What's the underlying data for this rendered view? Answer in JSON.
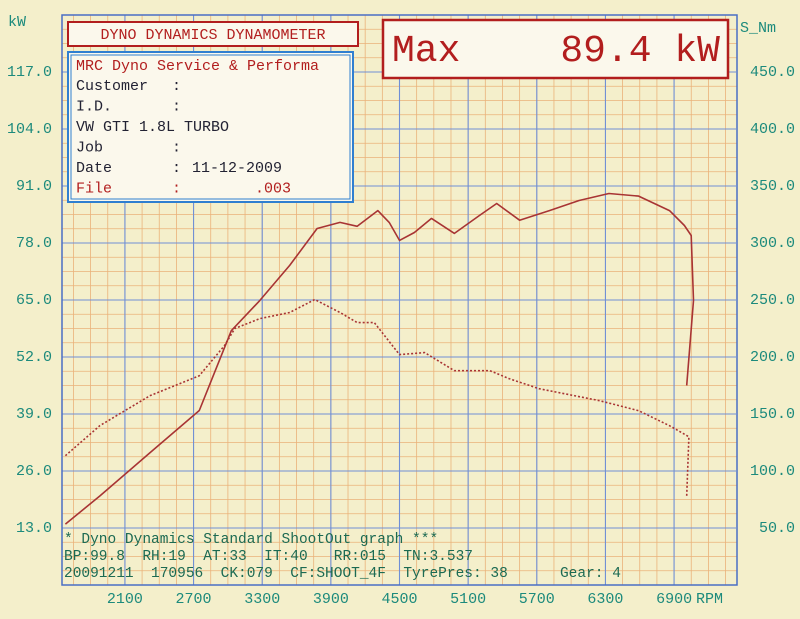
{
  "chart_data": {
    "type": "line",
    "y_label": "kW",
    "y2_label": "S_Nm",
    "x_label": "RPM",
    "header_title": "DYNO DYNAMICS DYNAMOMETER",
    "max_label": "Max",
    "max_value": "89.4 kW",
    "info": {
      "shop": "MRC Dyno Service & Performa",
      "rows": [
        [
          "Customer",
          ":",
          ""
        ],
        [
          "I.D.",
          ":",
          ""
        ],
        [
          "VW GTI 1.8L TURBO",
          "",
          ""
        ],
        [
          "Job",
          ":",
          ""
        ],
        [
          "Date",
          ":",
          "11-12-2009"
        ],
        [
          "File",
          ":",
          ".003"
        ]
      ]
    },
    "footer": [
      "* Dyno Dynamics Standard ShootOut graph ***",
      "BP:99.8  RH:19  AT:33  IT:40   RR:015  TN:3.537",
      "20091211  170956  CK:079  CF:SHOOT_4F  TyrePres: 38      Gear: 4"
    ],
    "xlim": [
      1550,
      7450
    ],
    "xticks": [
      2100,
      2700,
      3300,
      3900,
      4500,
      5100,
      5700,
      6300,
      6900
    ],
    "ylim": [
      0,
      130
    ],
    "yticks": [
      {
        "value": 13,
        "label": "13.0"
      },
      {
        "value": 26,
        "label": "26.0"
      },
      {
        "value": 39,
        "label": "39.0"
      },
      {
        "value": 52,
        "label": "52.0"
      },
      {
        "value": 65,
        "label": "65.0"
      },
      {
        "value": 78,
        "label": "78.0"
      },
      {
        "value": 91,
        "label": "91.0"
      },
      {
        "value": 104,
        "label": "104.0"
      },
      {
        "value": 117,
        "label": "117.0"
      }
    ],
    "y2lim": [
      0,
      500
    ],
    "y2ticks": [
      {
        "value": 50,
        "label": "50.0"
      },
      {
        "value": 100,
        "label": "100.0"
      },
      {
        "value": 150,
        "label": "150.0"
      },
      {
        "value": 200,
        "label": "200.0"
      },
      {
        "value": 250,
        "label": "250.0"
      },
      {
        "value": 300,
        "label": "300.0"
      },
      {
        "value": 350,
        "label": "350.0"
      },
      {
        "value": 400,
        "label": "400.0"
      },
      {
        "value": 450,
        "label": "450.0"
      }
    ],
    "grid": true,
    "series": [
      {
        "color": "#a83434",
        "dash": false,
        "axis": "y",
        "x": [
          1580,
          1880,
          2320,
          2750,
          3030,
          3280,
          3540,
          3780,
          3980,
          4130,
          4310,
          4410,
          4500,
          4630,
          4780,
          4980,
          5200,
          5350,
          5550,
          5810,
          6070,
          6330,
          6590,
          6860,
          6990,
          7050,
          7070,
          7010
        ],
        "values": [
          13.9,
          20.3,
          30.2,
          39.8,
          58.0,
          64.9,
          72.9,
          81.3,
          82.7,
          81.8,
          85.4,
          82.7,
          78.6,
          80.4,
          83.6,
          80.2,
          84.3,
          87.0,
          83.2,
          85.4,
          87.7,
          89.3,
          88.7,
          85.4,
          82.0,
          79.7,
          64.9,
          45.5
        ]
      },
      {
        "color": "#a83434",
        "dash": true,
        "axis": "y2",
        "x": [
          1580,
          1880,
          2320,
          2750,
          2970,
          3060,
          3280,
          3540,
          3760,
          3980,
          4130,
          4280,
          4500,
          4720,
          4980,
          5290,
          5460,
          5720,
          6250,
          6590,
          6860,
          7030,
          7010
        ],
        "values": [
          113.4,
          139.7,
          166.1,
          183.6,
          210.0,
          225.0,
          233.7,
          239.0,
          250.4,
          239.0,
          230.2,
          230.2,
          202.1,
          203.9,
          188.0,
          188.0,
          181.0,
          172.2,
          161.7,
          152.9,
          139.7,
          130.0,
          78.2
        ]
      }
    ]
  }
}
